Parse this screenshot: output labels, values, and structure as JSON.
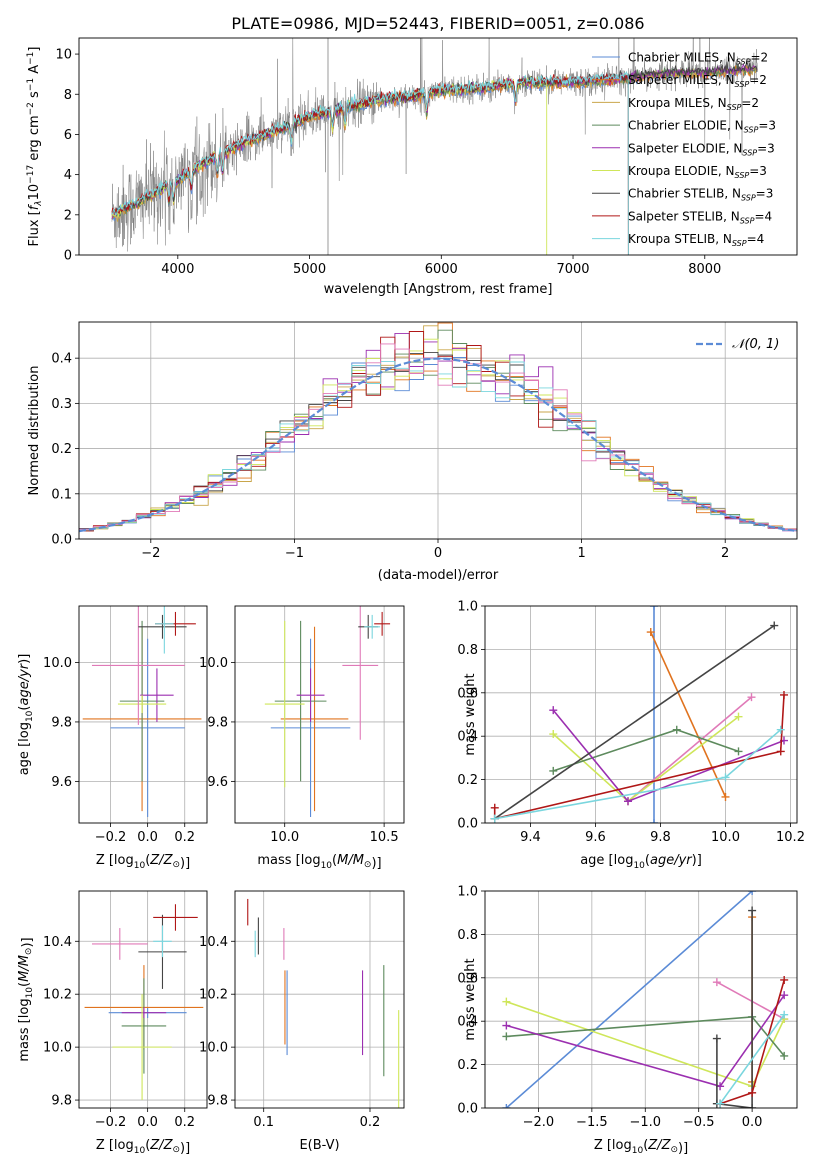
{
  "figure_title": "PLATE=0986, MJD=52443, FIBERID=0051, z=0.086",
  "colors": {
    "Chabrier MILES": "#5b8bd6",
    "Salpeter MILES": "#e0731f",
    "Kroupa MILES": "#c9a64b",
    "Chabrier ELODIE": "#5d8a5d",
    "Salpeter ELODIE": "#9b2fb0",
    "Kroupa ELODIE": "#cfe65a",
    "Chabrier STELIB": "#444444",
    "Salpeter STELIB": "#b01717",
    "Kroupa STELIB": "#7ad6de",
    "Kroupa ELODIE cross": "#e07ab8",
    "observed": "#808080",
    "gaussian": "#5b8bd6",
    "grid": "#b0b0b0"
  },
  "chart_data": [
    {
      "id": "spectrum",
      "type": "line",
      "title": "PLATE=0986, MJD=52443, FIBERID=0051, z=0.086",
      "xlabel": "wavelength [Angstrom, rest frame]",
      "ylabel": "Flux [f_λ 10^-17 erg cm^-2 s^-1 A^-1]",
      "xlim": [
        3250,
        8700
      ],
      "ylim": [
        0,
        10.8
      ],
      "xticks": [
        4000,
        5000,
        6000,
        7000,
        8000
      ],
      "yticks": [
        0,
        2,
        4,
        6,
        8,
        10
      ],
      "grid": false,
      "legend_position": "right",
      "legend": [
        {
          "label": "Chabrier MILES, N",
          "sub": "SSP",
          "tail": "=2"
        },
        {
          "label": "Salpeter MILES, N",
          "sub": "SSP",
          "tail": "=2"
        },
        {
          "label": "Kroupa MILES, N",
          "sub": "SSP",
          "tail": "=2"
        },
        {
          "label": "Chabrier ELODIE, N",
          "sub": "SSP",
          "tail": "=3"
        },
        {
          "label": "Salpeter ELODIE, N",
          "sub": "SSP",
          "tail": "=3"
        },
        {
          "label": "Kroupa ELODIE, N",
          "sub": "SSP",
          "tail": "=3"
        },
        {
          "label": "Chabrier STELIB, N",
          "sub": "SSP",
          "tail": "=3"
        },
        {
          "label": "Salpeter STELIB, N",
          "sub": "SSP",
          "tail": "=4"
        },
        {
          "label": "Kroupa STELIB, N",
          "sub": "SSP",
          "tail": "=4"
        }
      ],
      "continuum_x": [
        3500,
        3700,
        3900,
        4000,
        4200,
        4500,
        4800,
        5000,
        5200,
        5500,
        5800,
        6000,
        6300,
        6600,
        6800,
        7000,
        7200,
        7400,
        7600,
        7800,
        8000,
        8200,
        8400
      ],
      "continuum_y": [
        2.0,
        2.6,
        3.4,
        3.7,
        4.6,
        5.6,
        6.3,
        6.9,
        7.2,
        7.7,
        7.9,
        8.2,
        8.3,
        8.6,
        8.6,
        8.6,
        8.7,
        8.8,
        9.0,
        9.1,
        9.1,
        9.2,
        9.3
      ],
      "model_x_range": [
        3500,
        8400
      ],
      "observed_x_range": [
        3500,
        8400
      ],
      "model_cutoffs": {
        "Kroupa ELODIE": 6800,
        "Salpeter STELIB": 7420,
        "Kroupa STELIB": 7420
      }
    },
    {
      "id": "residuals",
      "type": "step",
      "xlabel": "(data-model)/error",
      "ylabel": "Normed distribution",
      "xlim": [
        -2.5,
        2.5
      ],
      "ylim": [
        0,
        0.48
      ],
      "xticks": [
        -2,
        -1,
        0,
        1,
        2
      ],
      "yticks": [
        0.0,
        0.1,
        0.2,
        0.3,
        0.4
      ],
      "grid": true,
      "legend": [
        {
          "label": "𝒩(0, 1)"
        }
      ],
      "legend_position": "top-right",
      "bin_width": 0.1,
      "reference_curve": "standard normal density"
    },
    {
      "id": "age_vs_Z",
      "type": "scatter",
      "xlabel": "Z [log10(Z/Z⊙)]",
      "ylabel": "age [log10(age/yr)]",
      "xlim": [
        -0.37,
        0.32
      ],
      "ylim": [
        9.46,
        10.19
      ],
      "xticks": [
        -0.2,
        0.0,
        0.2
      ],
      "yticks": [
        9.6,
        9.8,
        10.0
      ],
      "grid": true,
      "points": [
        {
          "series": "Chabrier MILES",
          "x": 0.0,
          "y": 9.78,
          "xerr": 0.2,
          "yerr": 0.3
        },
        {
          "series": "Salpeter MILES",
          "x": -0.03,
          "y": 9.81,
          "xerr": 0.32,
          "yerr": 0.31
        },
        {
          "series": "Chabrier ELODIE",
          "x": -0.03,
          "y": 9.87,
          "xerr": 0.12,
          "yerr": 0.27
        },
        {
          "series": "Salpeter ELODIE",
          "x": 0.05,
          "y": 9.89,
          "xerr": 0.09,
          "yerr": 0.09
        },
        {
          "series": "Kroupa ELODIE",
          "x": -0.03,
          "y": 9.86,
          "xerr": 0.13,
          "yerr": 0.03
        },
        {
          "series": "Kroupa ELODIE cross",
          "x": -0.05,
          "y": 9.99,
          "xerr": 0.25,
          "yerr": 0.2
        },
        {
          "series": "Chabrier STELIB",
          "x": 0.08,
          "y": 10.12,
          "xerr": 0.13,
          "yerr": 0.04
        },
        {
          "series": "Salpeter STELIB",
          "x": 0.15,
          "y": 10.13,
          "xerr": 0.11,
          "yerr": 0.04
        },
        {
          "series": "Kroupa STELIB",
          "x": 0.09,
          "y": 10.13,
          "xerr": 0.05,
          "yerr": 0.1
        }
      ]
    },
    {
      "id": "age_vs_mass",
      "type": "scatter",
      "xlabel": "mass [log10(M/M⊙)]",
      "ylabel": "",
      "xlim": [
        9.75,
        10.6
      ],
      "ylim": [
        9.46,
        10.19
      ],
      "xticks": [
        10.0,
        10.5
      ],
      "yticks": [
        9.6,
        9.8,
        10.0
      ],
      "grid": true,
      "points": [
        {
          "series": "Chabrier MILES",
          "x": 10.13,
          "y": 9.78,
          "xerr": 0.2,
          "yerr": 0.3
        },
        {
          "series": "Salpeter MILES",
          "x": 10.15,
          "y": 9.81,
          "xerr": 0.17,
          "yerr": 0.31
        },
        {
          "series": "Chabrier ELODIE",
          "x": 10.08,
          "y": 9.87,
          "xerr": 0.13,
          "yerr": 0.27
        },
        {
          "series": "Salpeter ELODIE",
          "x": 10.13,
          "y": 9.89,
          "xerr": 0.07,
          "yerr": 0.09
        },
        {
          "series": "Kroupa ELODIE",
          "x": 10.0,
          "y": 9.86,
          "xerr": 0.1,
          "yerr": 0.28
        },
        {
          "series": "Kroupa ELODIE cross",
          "x": 10.38,
          "y": 9.99,
          "xerr": 0.09,
          "yerr": 0.25
        },
        {
          "series": "Chabrier STELIB",
          "x": 10.42,
          "y": 10.12,
          "xerr": 0.05,
          "yerr": 0.04
        },
        {
          "series": "Salpeter STELIB",
          "x": 10.49,
          "y": 10.13,
          "xerr": 0.04,
          "yerr": 0.04
        },
        {
          "series": "Kroupa STELIB",
          "x": 10.44,
          "y": 10.12,
          "xerr": 0.04,
          "yerr": 0.04
        }
      ]
    },
    {
      "id": "weight_vs_age",
      "type": "line",
      "xlabel": "age [log10(age/yr)]",
      "ylabel": "mass weight",
      "xlim": [
        9.26,
        10.22
      ],
      "ylim": [
        0,
        1.0
      ],
      "xticks": [
        9.4,
        9.6,
        9.8,
        10.0,
        10.2
      ],
      "yticks": [
        0.0,
        0.2,
        0.4,
        0.6,
        0.8,
        1.0
      ],
      "grid": true,
      "series": [
        {
          "series": "Chabrier MILES",
          "x": [
            9.78,
            9.78
          ],
          "y": [
            0.0,
            1.0
          ]
        },
        {
          "series": "Salpeter MILES",
          "x": [
            9.77,
            10.0
          ],
          "y": [
            0.88,
            0.12
          ]
        },
        {
          "series": "Kroupa ELODIE cross",
          "x": [
            9.7,
            10.08
          ],
          "y": [
            0.1,
            0.58
          ]
        },
        {
          "series": "Kroupa ELODIE",
          "x": [
            9.47,
            9.7,
            10.04
          ],
          "y": [
            0.41,
            0.1,
            0.49
          ]
        },
        {
          "series": "Chabrier ELODIE",
          "x": [
            9.47,
            9.85,
            10.04
          ],
          "y": [
            0.24,
            0.43,
            0.33
          ]
        },
        {
          "series": "Salpeter ELODIE",
          "x": [
            9.47,
            9.7,
            10.18
          ],
          "y": [
            0.52,
            0.1,
            0.38
          ]
        },
        {
          "series": "Chabrier STELIB",
          "x": [
            9.29,
            10.15
          ],
          "y": [
            0.02,
            0.91
          ]
        },
        {
          "series": "Salpeter STELIB",
          "x": [
            9.29,
            9.29,
            10.17,
            10.18
          ],
          "y": [
            0.07,
            0.02,
            0.33,
            0.59
          ]
        },
        {
          "series": "Kroupa STELIB",
          "x": [
            9.29,
            10.0,
            10.17
          ],
          "y": [
            0.02,
            0.21,
            0.43
          ]
        }
      ]
    },
    {
      "id": "mass_vs_Z",
      "type": "scatter",
      "xlabel": "Z [log10(Z/Z⊙)]",
      "ylabel": "mass [log10(M/M⊙)]",
      "xlim": [
        -0.37,
        0.32
      ],
      "ylim": [
        9.77,
        10.59
      ],
      "xticks": [
        -0.2,
        0.0,
        0.2
      ],
      "yticks": [
        9.8,
        10.0,
        10.2,
        10.4
      ],
      "grid": true,
      "points": [
        {
          "series": "Chabrier MILES",
          "x": 0.0,
          "y": 10.13,
          "xerr": 0.21,
          "yerr": 0.02
        },
        {
          "series": "Salpeter MILES",
          "x": -0.02,
          "y": 10.15,
          "xerr": 0.32,
          "yerr": 0.16
        },
        {
          "series": "Chabrier ELODIE",
          "x": -0.02,
          "y": 10.08,
          "xerr": 0.12,
          "yerr": 0.18
        },
        {
          "series": "Salpeter ELODIE",
          "x": -0.02,
          "y": 10.13,
          "xerr": 0.12,
          "yerr": 0.02
        },
        {
          "series": "Kroupa ELODIE",
          "x": -0.03,
          "y": 10.0,
          "xerr": 0.16,
          "yerr": 0.2
        },
        {
          "series": "Kroupa ELODIE cross",
          "x": -0.15,
          "y": 10.39,
          "xerr": 0.15,
          "yerr": 0.06
        },
        {
          "series": "Chabrier STELIB",
          "x": 0.08,
          "y": 10.36,
          "xerr": 0.13,
          "yerr": 0.14
        },
        {
          "series": "Salpeter STELIB",
          "x": 0.15,
          "y": 10.49,
          "xerr": 0.12,
          "yerr": 0.05
        },
        {
          "series": "Kroupa STELIB",
          "x": 0.08,
          "y": 10.4,
          "xerr": 0.05,
          "yerr": 0.06
        }
      ]
    },
    {
      "id": "mass_vs_ebv",
      "type": "scatter",
      "xlabel": "E(B-V)",
      "ylabel": "",
      "xlim": [
        0.073,
        0.232
      ],
      "ylim": [
        9.77,
        10.59
      ],
      "xticks": [
        0.1,
        0.2
      ],
      "yticks": [
        9.8,
        10.0,
        10.2,
        10.4
      ],
      "grid": true,
      "points": [
        {
          "series": "Chabrier MILES",
          "x": 0.122,
          "y": 10.13,
          "xerr": 0.0,
          "yerr": 0.16
        },
        {
          "series": "Salpeter MILES",
          "x": 0.12,
          "y": 10.15,
          "xerr": 0.0,
          "yerr": 0.14
        },
        {
          "series": "Kroupa ELODIE cross",
          "x": 0.119,
          "y": 10.39,
          "xerr": 0.0,
          "yerr": 0.06
        },
        {
          "series": "Salpeter STELIB",
          "x": 0.085,
          "y": 10.51,
          "xerr": 0.0,
          "yerr": 0.05
        },
        {
          "series": "Kroupa STELIB",
          "x": 0.092,
          "y": 10.39,
          "xerr": 0.0,
          "yerr": 0.05
        },
        {
          "series": "Chabrier STELIB",
          "x": 0.095,
          "y": 10.42,
          "xerr": 0.0,
          "yerr": 0.07
        },
        {
          "series": "Salpeter ELODIE",
          "x": 0.193,
          "y": 10.13,
          "xerr": 0.0,
          "yerr": 0.16
        },
        {
          "series": "Chabrier ELODIE",
          "x": 0.213,
          "y": 10.1,
          "xerr": 0.0,
          "yerr": 0.21
        },
        {
          "series": "Kroupa ELODIE",
          "x": 0.227,
          "y": 9.92,
          "xerr": 0.0,
          "yerr": 0.22
        }
      ]
    },
    {
      "id": "weight_vs_Z",
      "type": "line",
      "xlabel": "Z [log10(Z/Z⊙)]",
      "ylabel": "mass weight",
      "xlim": [
        -2.5,
        0.42
      ],
      "ylim": [
        0,
        1.0
      ],
      "xticks": [
        -2.0,
        -1.5,
        -1.0,
        -0.5,
        0.0
      ],
      "yticks": [
        0.0,
        0.2,
        0.4,
        0.6,
        0.8,
        1.0
      ],
      "grid": true,
      "series": [
        {
          "series": "Chabrier MILES",
          "x": [
            -2.3,
            0.0
          ],
          "y": [
            0.0,
            1.0
          ]
        },
        {
          "series": "Salpeter MILES",
          "x": [
            0.0,
            0.0
          ],
          "y": [
            0.88,
            0.12
          ]
        },
        {
          "series": "Kroupa ELODIE cross",
          "x": [
            -0.33,
            0.3
          ],
          "y": [
            0.58,
            0.41
          ]
        },
        {
          "series": "Kroupa ELODIE",
          "x": [
            -2.3,
            0.0,
            0.3
          ],
          "y": [
            0.49,
            0.1,
            0.41
          ]
        },
        {
          "series": "Chabrier ELODIE",
          "x": [
            -2.3,
            0.0,
            0.3
          ],
          "y": [
            0.33,
            0.42,
            0.24
          ]
        },
        {
          "series": "Salpeter ELODIE",
          "x": [
            -2.3,
            -0.3,
            0.3
          ],
          "y": [
            0.38,
            0.1,
            0.52
          ]
        },
        {
          "series": "Chabrier STELIB",
          "x": [
            -0.33,
            -0.33,
            0.0,
            0.0
          ],
          "y": [
            0.32,
            0.02,
            0.0,
            0.91
          ]
        },
        {
          "series": "Salpeter STELIB",
          "x": [
            -0.3,
            0.0,
            0.3
          ],
          "y": [
            0.02,
            0.07,
            0.59
          ]
        },
        {
          "series": "Kroupa STELIB",
          "x": [
            -0.3,
            0.3
          ],
          "y": [
            0.02,
            0.43
          ]
        }
      ]
    }
  ]
}
